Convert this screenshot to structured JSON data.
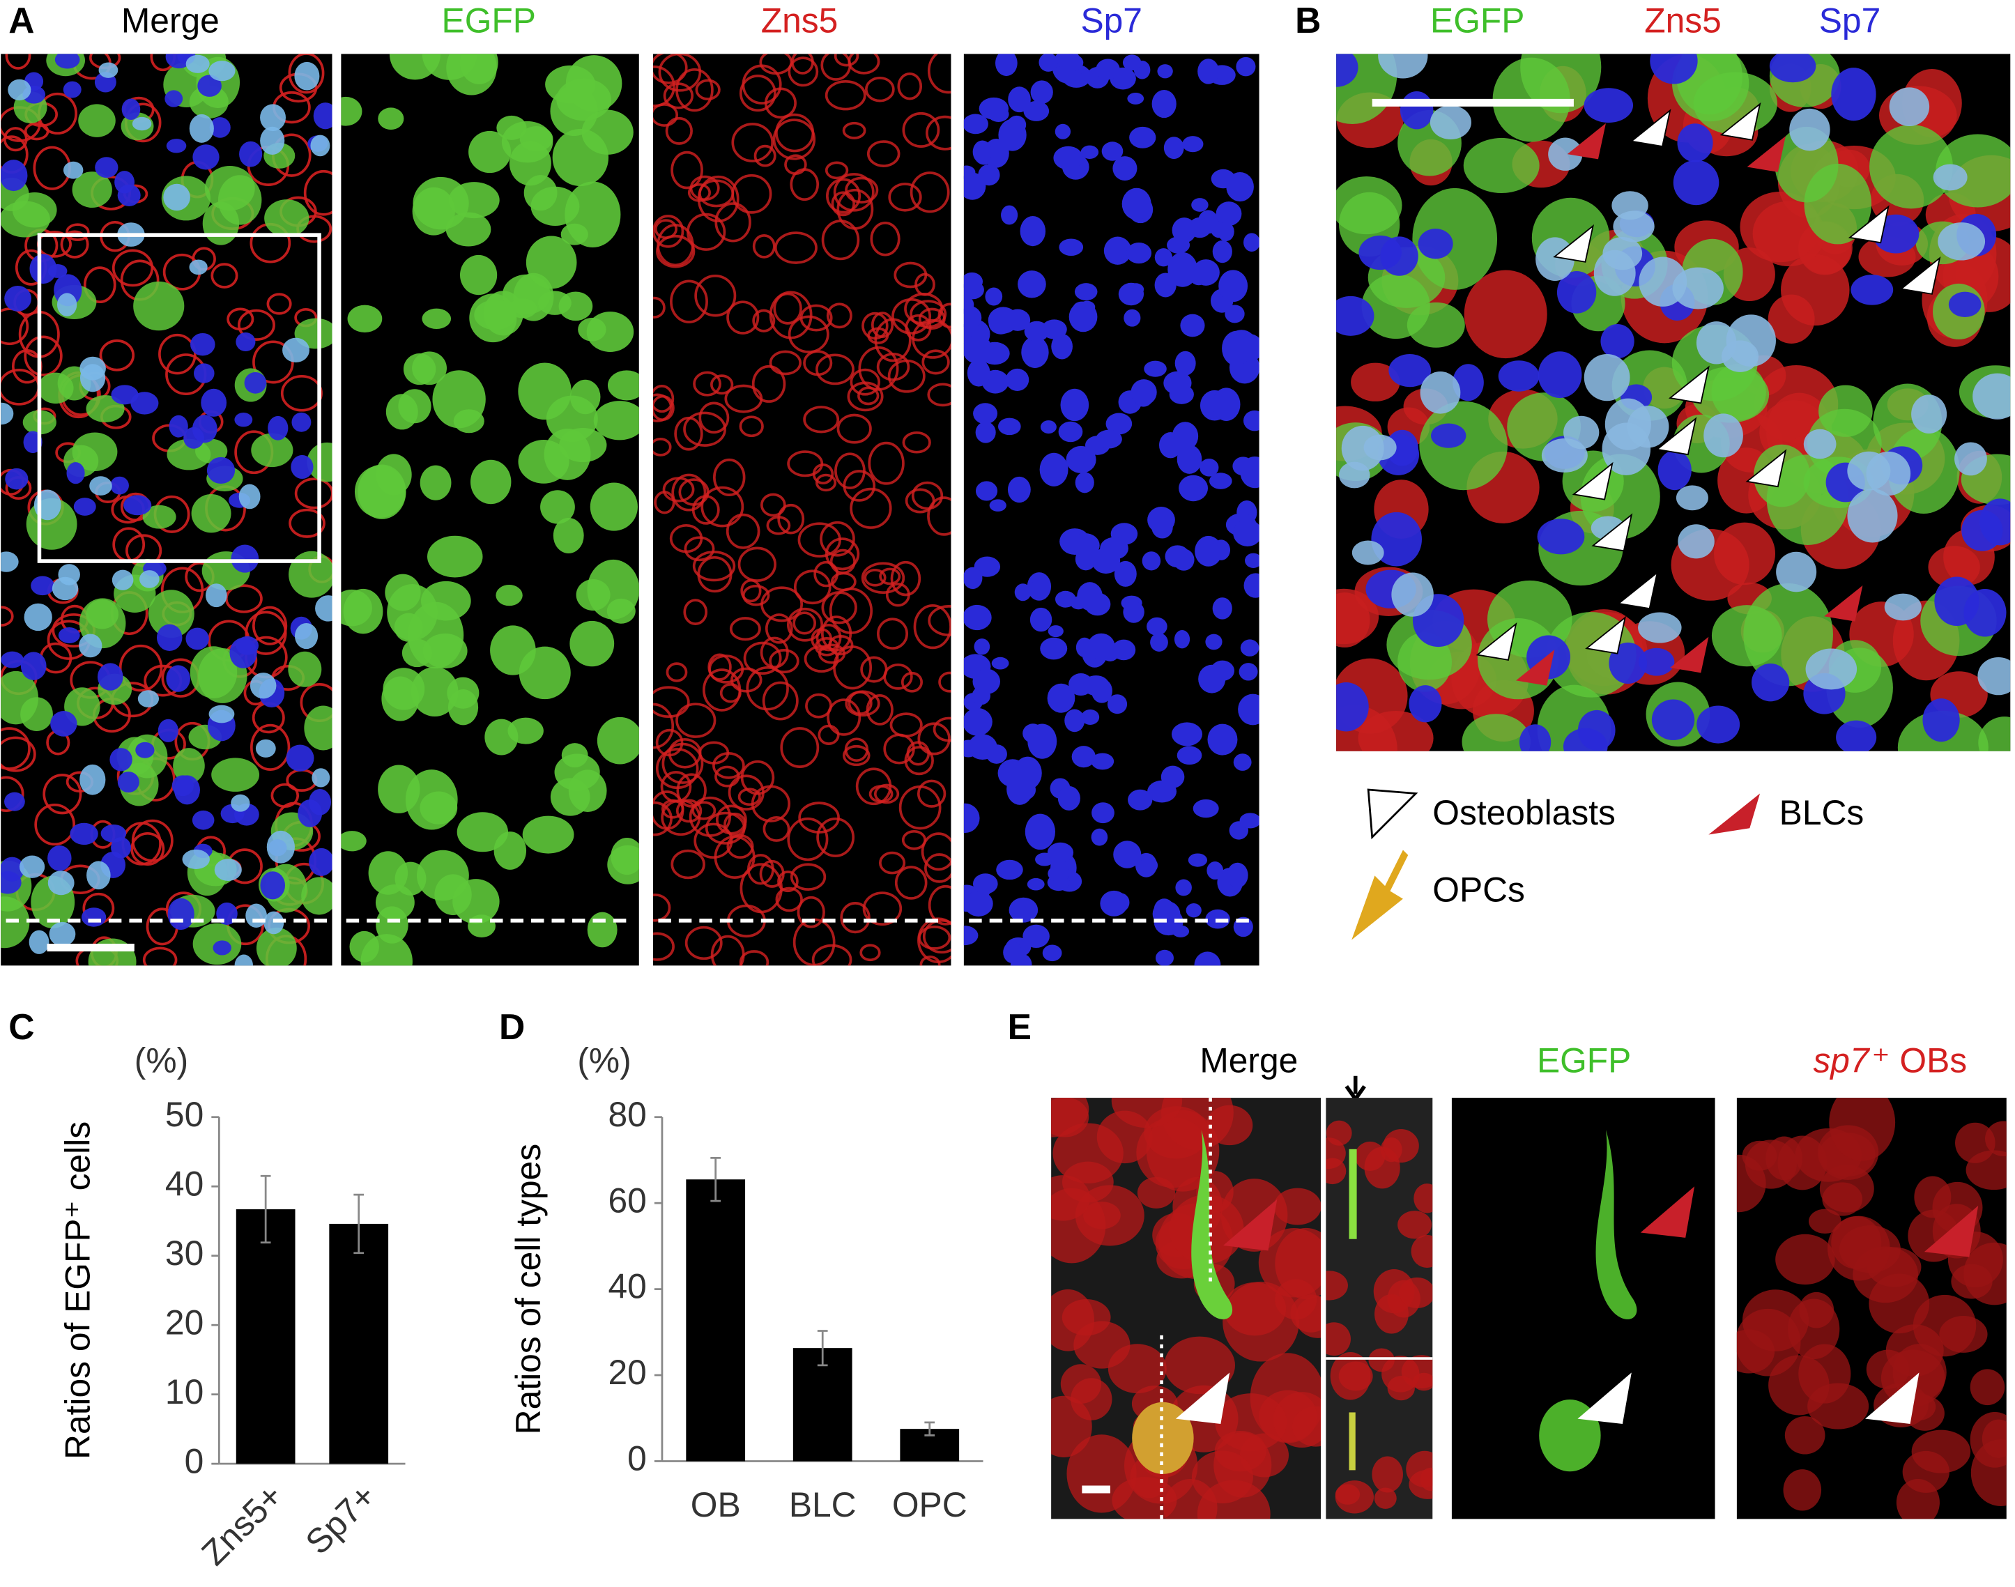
{
  "panel_a": {
    "letter": "A",
    "titles": [
      "Merge",
      "EGFP",
      "Zns5",
      "Sp7"
    ]
  },
  "panel_b": {
    "letter": "B",
    "titles": [
      "EGFP",
      "Zns5",
      "Sp7"
    ],
    "legend": [
      "Osteoblasts",
      "BLCs",
      "OPCs"
    ]
  },
  "panel_e": {
    "letter": "E",
    "titles": [
      "Merge",
      "EGFP"
    ],
    "sp7_gene": "sp7",
    "sp7_rest": "⁺ OBs"
  },
  "chart_data": [
    {
      "type": "bar",
      "panel": "C",
      "unit": "(%)",
      "y_label": "Ratios of EGFP⁺ cells",
      "categories": [
        "Zns5+",
        "Sp7+"
      ],
      "values": [
        36.7,
        34.6
      ],
      "errors": [
        4.8,
        4.2
      ],
      "color": "#000000",
      "ylim": [
        0,
        50
      ],
      "yticks": [
        0,
        10,
        20,
        30,
        40,
        50
      ],
      "grid": false
    },
    {
      "type": "bar",
      "panel": "D",
      "unit": "(%)",
      "y_label": "Ratios of cell types",
      "categories": [
        "OB",
        "BLC",
        "OPC"
      ],
      "values": [
        65.5,
        26.3,
        7.5
      ],
      "errors": [
        5.0,
        4.0,
        1.5
      ],
      "color": "#000000",
      "ylim": [
        0,
        80
      ],
      "yticks": [
        0,
        20,
        40,
        60,
        80
      ],
      "grid": false
    }
  ]
}
